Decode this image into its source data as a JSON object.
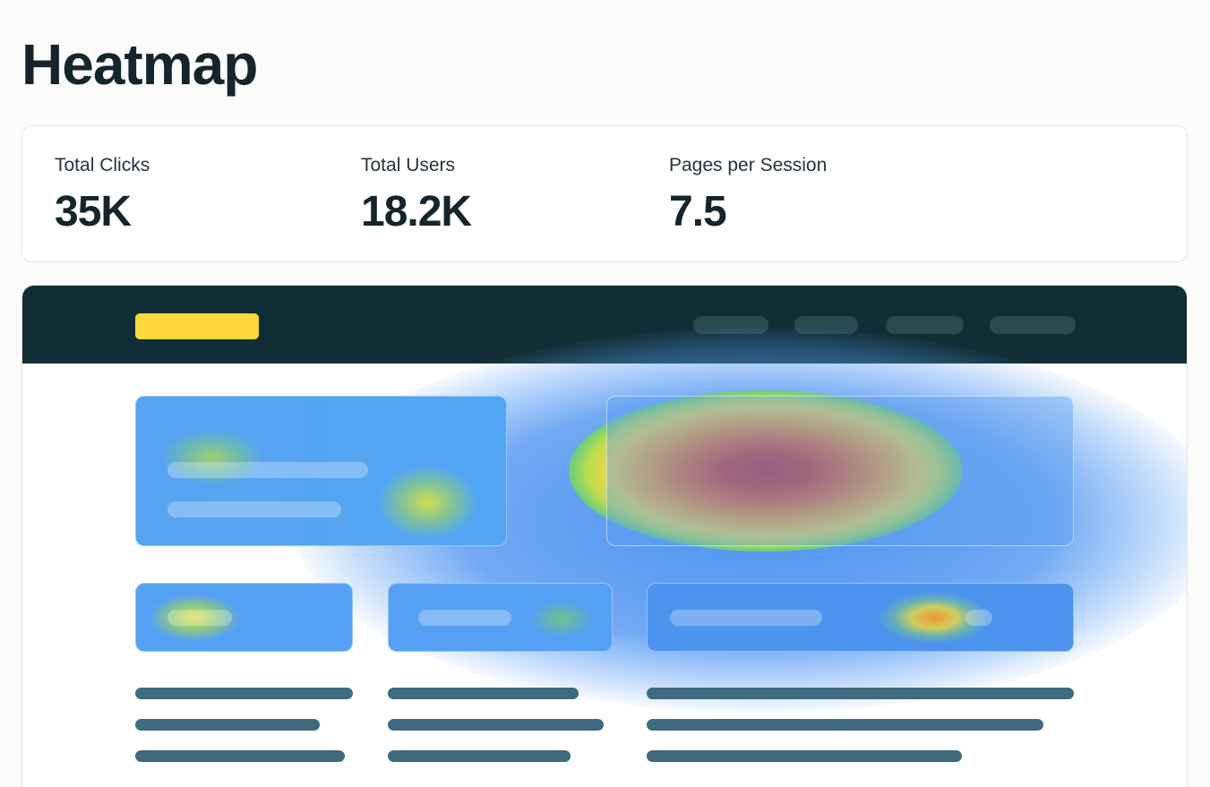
{
  "page": {
    "title": "Heatmap"
  },
  "stats": [
    {
      "label": "Total Clicks",
      "value": "35K"
    },
    {
      "label": "Total Users",
      "value": "18.2K"
    },
    {
      "label": "Pages per Session",
      "value": "7.5"
    }
  ],
  "mockup": {
    "nav_items": [
      "nav-item-1",
      "nav-item-2",
      "nav-item-3",
      "nav-item-4"
    ],
    "colors": {
      "navbar": "#112d35",
      "logo": "#fed73a",
      "cold": "#4e9cf0",
      "hot": "#c62a22",
      "text_lines": "#3e6b7d"
    }
  }
}
